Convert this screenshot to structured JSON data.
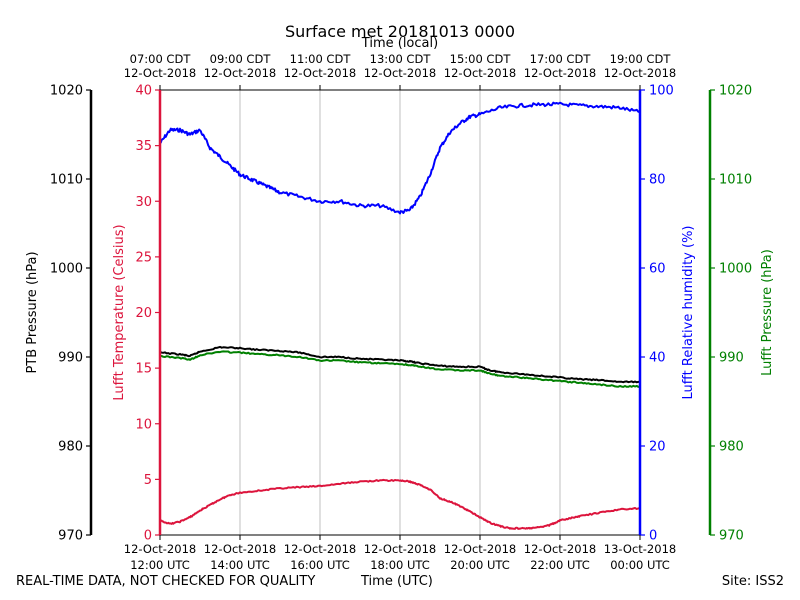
{
  "chart_data": {
    "type": "line",
    "title": "Surface met 20181013 0000",
    "top_axis_label": "Time (local)",
    "bottom_axis_label": "Time (UTC)",
    "x_ticks_bottom": [
      {
        "hour": 12,
        "date": "12-Oct-2018",
        "time": "12:00 UTC"
      },
      {
        "hour": 14,
        "date": "12-Oct-2018",
        "time": "14:00 UTC"
      },
      {
        "hour": 16,
        "date": "12-Oct-2018",
        "time": "16:00 UTC"
      },
      {
        "hour": 18,
        "date": "12-Oct-2018",
        "time": "18:00 UTC"
      },
      {
        "hour": 20,
        "date": "12-Oct-2018",
        "time": "20:00 UTC"
      },
      {
        "hour": 22,
        "date": "12-Oct-2018",
        "time": "22:00 UTC"
      },
      {
        "hour": 24,
        "date": "13-Oct-2018",
        "time": "00:00 UTC"
      }
    ],
    "x_ticks_top": [
      {
        "hour": 12,
        "time": "07:00 CDT",
        "date": "12-Oct-2018"
      },
      {
        "hour": 14,
        "time": "09:00 CDT",
        "date": "12-Oct-2018"
      },
      {
        "hour": 16,
        "time": "11:00 CDT",
        "date": "12-Oct-2018"
      },
      {
        "hour": 18,
        "time": "13:00 CDT",
        "date": "12-Oct-2018"
      },
      {
        "hour": 20,
        "time": "15:00 CDT",
        "date": "12-Oct-2018"
      },
      {
        "hour": 22,
        "time": "17:00 CDT",
        "date": "12-Oct-2018"
      },
      {
        "hour": 24,
        "time": "19:00 CDT",
        "date": "12-Oct-2018"
      }
    ],
    "xlim": [
      12,
      24
    ],
    "axes": [
      {
        "id": "ptb",
        "label": "PTB Pressure (hPa)",
        "ylim": [
          970,
          1020
        ],
        "ticks": [
          970,
          980,
          990,
          1000,
          1010,
          1020
        ],
        "color": "#000000",
        "side": "left-outer"
      },
      {
        "id": "temp",
        "label": "Lufft Temperature (Celsius)",
        "ylim": [
          0,
          40
        ],
        "ticks": [
          0,
          5,
          10,
          15,
          20,
          25,
          30,
          35,
          40
        ],
        "color": "#dc143c",
        "side": "left"
      },
      {
        "id": "rh",
        "label": "Lufft Relative humidity (%)",
        "ylim": [
          0,
          100
        ],
        "ticks": [
          0,
          20,
          40,
          60,
          80,
          100
        ],
        "color": "#0000ff",
        "side": "right"
      },
      {
        "id": "lp",
        "label": "Lufft Pressure (hPa)",
        "ylim": [
          970,
          1020
        ],
        "ticks": [
          970,
          980,
          990,
          1000,
          1010,
          1020
        ],
        "color": "#008000",
        "side": "right-outer"
      }
    ],
    "series": [
      {
        "name": "Lufft Relative humidity (%)",
        "axis": "rh",
        "color": "#0000ff",
        "x": [
          12.0,
          12.25,
          12.5,
          12.75,
          13.0,
          13.25,
          13.5,
          13.75,
          14.0,
          14.25,
          14.5,
          14.75,
          15.0,
          15.5,
          16.0,
          16.5,
          17.0,
          17.5,
          18.0,
          18.25,
          18.5,
          18.75,
          19.0,
          19.25,
          19.5,
          19.75,
          20.0,
          20.5,
          21.0,
          21.5,
          22.0,
          22.5,
          23.0,
          23.5,
          24.0
        ],
        "values": [
          88,
          91,
          91,
          90,
          91,
          87,
          85,
          83,
          81,
          80,
          79,
          78,
          77,
          76,
          75,
          75,
          74,
          74,
          72.5,
          73,
          76,
          81,
          87,
          90.5,
          92.5,
          94,
          94.5,
          96,
          96.5,
          96.7,
          96.8,
          96.5,
          96.3,
          96,
          95
        ]
      },
      {
        "name": "PTB Pressure (hPa)",
        "axis": "ptb",
        "color": "#000000",
        "x": [
          12.0,
          12.5,
          12.75,
          13.0,
          13.5,
          14.0,
          14.5,
          15.0,
          15.5,
          16.0,
          16.5,
          17.0,
          17.5,
          18.0,
          18.25,
          18.5,
          19.0,
          19.5,
          20.0,
          20.25,
          20.5,
          21.0,
          21.5,
          22.0,
          22.5,
          23.0,
          23.5,
          24.0
        ],
        "values": [
          990.5,
          990.3,
          990.1,
          990.6,
          991.1,
          991.0,
          990.8,
          990.7,
          990.5,
          990.0,
          990.0,
          989.8,
          989.7,
          989.6,
          989.5,
          989.3,
          989.0,
          988.9,
          988.9,
          988.5,
          988.3,
          988.1,
          987.9,
          987.7,
          987.5,
          987.4,
          987.2,
          987.2
        ]
      },
      {
        "name": "Lufft Pressure (hPa)",
        "axis": "lp",
        "color": "#008000",
        "x": [
          12.0,
          12.5,
          12.75,
          13.0,
          13.5,
          14.0,
          14.5,
          15.0,
          15.5,
          16.0,
          16.5,
          17.0,
          17.5,
          18.0,
          18.25,
          18.5,
          19.0,
          19.5,
          20.0,
          20.25,
          20.5,
          21.0,
          21.5,
          22.0,
          22.5,
          23.0,
          23.5,
          24.0
        ],
        "values": [
          990.1,
          989.9,
          989.7,
          990.2,
          990.6,
          990.5,
          990.3,
          990.2,
          990.0,
          989.6,
          989.6,
          989.4,
          989.3,
          989.2,
          989.1,
          988.9,
          988.6,
          988.5,
          988.5,
          988.1,
          987.9,
          987.7,
          987.5,
          987.3,
          987.1,
          986.9,
          986.7,
          986.7
        ]
      },
      {
        "name": "Lufft Temperature (Celsius)",
        "axis": "temp",
        "color": "#dc143c",
        "x": [
          12.0,
          12.25,
          12.5,
          12.75,
          13.0,
          13.25,
          13.5,
          13.75,
          14.0,
          14.5,
          15.0,
          15.5,
          16.0,
          16.5,
          17.0,
          17.5,
          18.0,
          18.25,
          18.5,
          18.75,
          19.0,
          19.25,
          19.5,
          19.75,
          20.0,
          20.25,
          20.5,
          20.75,
          21.0,
          21.25,
          21.5,
          21.75,
          22.0,
          22.25,
          22.5,
          23.0,
          23.5,
          24.0
        ],
        "values": [
          1.3,
          1.0,
          1.2,
          1.6,
          2.2,
          2.7,
          3.2,
          3.6,
          3.8,
          4.0,
          4.2,
          4.3,
          4.4,
          4.6,
          4.8,
          4.9,
          4.9,
          4.8,
          4.5,
          4.1,
          3.3,
          3.0,
          2.6,
          2.1,
          1.6,
          1.1,
          0.8,
          0.6,
          0.6,
          0.6,
          0.7,
          0.9,
          1.3,
          1.5,
          1.7,
          2.0,
          2.3,
          2.4
        ]
      }
    ]
  },
  "footer": {
    "left": "REAL-TIME DATA, NOT CHECKED FOR QUALITY",
    "center": "Time (UTC)",
    "right": "Site: ISS2"
  }
}
